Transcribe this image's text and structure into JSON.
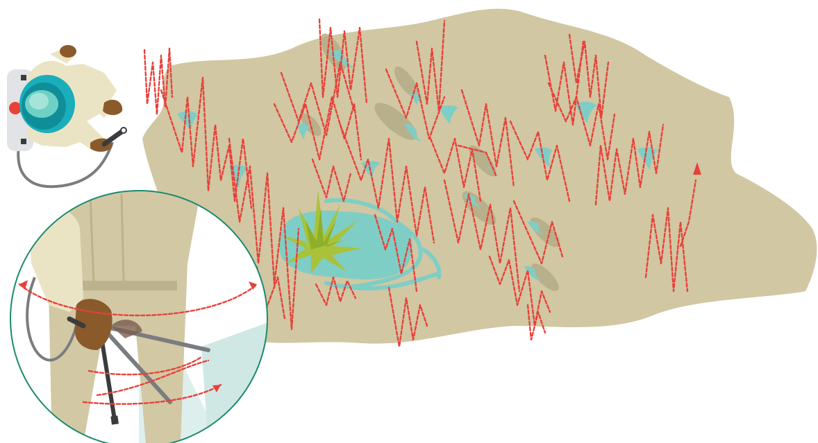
{
  "illustration": {
    "subject": "spraying-pattern",
    "colors": {
      "ground": "#d1c7a2",
      "ground_edge": "#c9be97",
      "puddle": "#7fcec5",
      "puddle_shadow": "#b4ab86",
      "trail": "#e8403a",
      "weed": "#a9c23a",
      "weed_dark": "#8fae2a",
      "inset_ring": "#1a8a6b",
      "suit": "#ebe4c4",
      "suit_inset": "#d2c8a4",
      "skin": "#8a5a2b",
      "hair": "#6b3f1a",
      "helmet": "#1aaebb",
      "tank": "#e2e3e6",
      "tank_cap": "#e84138",
      "hose": "#7b7c80",
      "spray_mist": "#cfe8e4"
    },
    "icons": [
      "operator-topdown",
      "spray-wand",
      "walking-path-arrow",
      "weed-clump",
      "water-puddle",
      "magnified-inset"
    ]
  }
}
